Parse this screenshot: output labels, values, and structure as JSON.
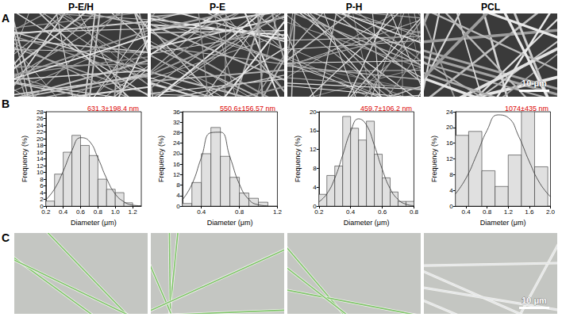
{
  "columns": [
    "P-E/H",
    "P-E",
    "P-H",
    "PCL"
  ],
  "rows": [
    {
      "letter": "A",
      "scale_bar": "10 μm"
    },
    {
      "letter": "B"
    },
    {
      "letter": "C",
      "scale_bar": "10 μm"
    }
  ],
  "chart_data": [
    {
      "type": "histogram",
      "annotation": "631.3±198.4 nm",
      "x_label": "Diameter (μm)",
      "y_label": "Frequency (%)",
      "bins": [
        0.2,
        0.3,
        0.4,
        0.5,
        0.6,
        0.7,
        0.8,
        0.9,
        1.0,
        1.1,
        1.2
      ],
      "counts": [
        1.5,
        9.5,
        16,
        21,
        18,
        15,
        8,
        5,
        4,
        1
      ],
      "fit": {
        "x": [
          0.2,
          0.3,
          0.4,
          0.5,
          0.6,
          0.7,
          0.8,
          0.9,
          1.0,
          1.1,
          1.2,
          1.3
        ],
        "values": [
          1.9,
          5.1,
          10.4,
          16.5,
          20.3,
          19.3,
          14.3,
          8.2,
          3.6,
          1.3,
          0.3,
          0.1
        ]
      },
      "color": "#e0e0e0",
      "xlim": [
        0.2,
        1.3
      ],
      "xticks": [
        0.2,
        0.4,
        0.6,
        0.8,
        {
          "value": 1,
          "label": "1.0"
        },
        1.2
      ],
      "ylim": [
        0,
        28
      ],
      "yticks": [
        0,
        2,
        4,
        6,
        8,
        10,
        12,
        14,
        16,
        18,
        20,
        22,
        24,
        26,
        28
      ],
      "grid": false
    },
    {
      "type": "histogram",
      "annotation": "550.6±156.57 nm",
      "x_label": "Diameter (μm)",
      "y_label": "Frequency (%)",
      "bins": [
        0.2,
        0.3,
        0.4,
        0.5,
        0.6,
        0.7,
        0.8,
        0.9,
        1.0,
        1.1
      ],
      "counts": [
        1,
        9,
        20,
        30,
        19,
        11,
        5,
        3,
        1.5
      ],
      "fit": {
        "x": [
          0.2,
          0.3,
          0.4,
          0.5,
          0.6,
          0.7,
          0.8,
          0.9,
          1.0,
          1.1
        ],
        "values": [
          2.4,
          8.3,
          18.6,
          28.0,
          28.2,
          18.8,
          8.4,
          2.5,
          0.5,
          0.1
        ]
      },
      "color": "#e0e0e0",
      "xlim": [
        0.2,
        1.2
      ],
      "xticks": [
        0.4,
        0.8,
        1.2
      ],
      "ylim": [
        0,
        36
      ],
      "yticks": [
        0,
        4,
        8,
        12,
        16,
        20,
        24,
        28,
        32,
        36
      ],
      "grid": false
    },
    {
      "type": "histogram",
      "annotation": "459.7±106.2 nm",
      "x_label": "Diameter (μm)",
      "y_label": "Frequency (%)",
      "bins": [
        0.2,
        0.25,
        0.3,
        0.35,
        0.4,
        0.45,
        0.5,
        0.55,
        0.6,
        0.65,
        0.7,
        0.75,
        0.8
      ],
      "counts": [
        2.5,
        6.5,
        8.5,
        19,
        16.5,
        14,
        18,
        11,
        6,
        3,
        1,
        1
      ],
      "fit": {
        "x": [
          0.2,
          0.25,
          0.3,
          0.35,
          0.4,
          0.45,
          0.5,
          0.55,
          0.6,
          0.65,
          0.7,
          0.75,
          0.8
        ],
        "values": [
          0.9,
          2.6,
          5.9,
          10.8,
          15.8,
          18.5,
          17.2,
          12.9,
          7.8,
          3.7,
          1.4,
          0.4,
          0.1
        ]
      },
      "color": "#e0e0e0",
      "xlim": [
        0.2,
        0.8
      ],
      "xticks": [
        0.2,
        0.4,
        0.6,
        0.8
      ],
      "ylim": [
        0,
        20
      ],
      "yticks": [
        0,
        4,
        8,
        12,
        16,
        20
      ],
      "grid": false
    },
    {
      "type": "histogram",
      "annotation": "1074±435 nm",
      "x_label": "Diameter (μm)",
      "y_label": "Frequency (%)",
      "bins": [
        0.2,
        0.45,
        0.7,
        0.95,
        1.2,
        1.45,
        1.7,
        1.95
      ],
      "counts": [
        18,
        19,
        9,
        5,
        13,
        24,
        10
      ],
      "fit": {
        "x": [
          0.2,
          0.4,
          0.6,
          0.8,
          1.0,
          1.2,
          1.4,
          1.6,
          1.8,
          2.0
        ],
        "values": [
          3.1,
          7.1,
          13.0,
          19.3,
          23.2,
          22.5,
          17.7,
          11.3,
          5.8,
          2.4
        ]
      },
      "color": "#e0e0e0",
      "xlim": [
        0.2,
        2.0
      ],
      "xticks": [
        0.4,
        0.8,
        1.2,
        1.6,
        {
          "value": 2,
          "label": "2.0"
        }
      ],
      "ylim": [
        0,
        24
      ],
      "yticks": [
        0,
        4,
        8,
        12,
        16,
        20,
        24
      ],
      "grid": false
    }
  ]
}
